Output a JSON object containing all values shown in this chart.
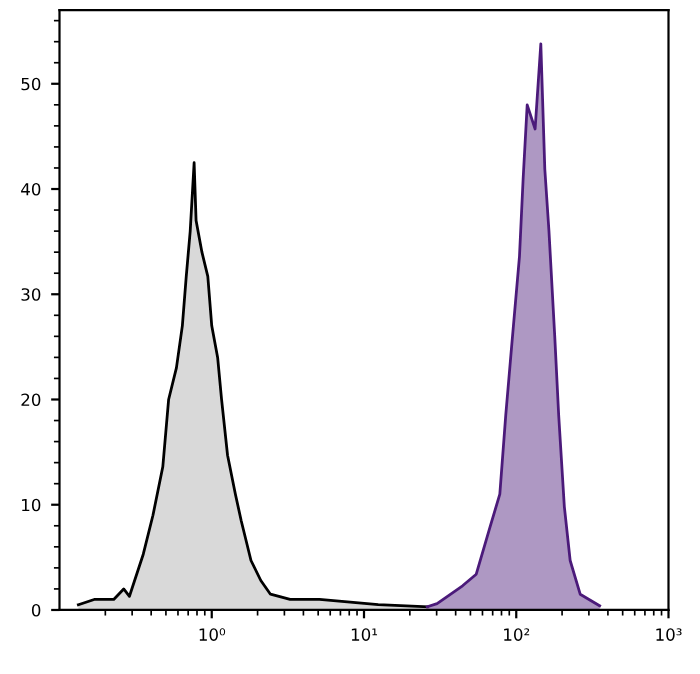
{
  "chart_data": {
    "type": "area",
    "log": "x",
    "xlim": [
      0.1,
      1000
    ],
    "ylim": [
      0,
      57
    ],
    "xticks": [
      {
        "value": 1,
        "label": "10⁰"
      },
      {
        "value": 10,
        "label": "10¹"
      },
      {
        "value": 100,
        "label": "10²"
      },
      {
        "value": 1000,
        "label": "10³"
      }
    ],
    "yticks": [
      0,
      10,
      20,
      30,
      40,
      50
    ],
    "series": [
      {
        "color": "#000000",
        "x": [
          0.133,
          0.169,
          0.227,
          0.264,
          0.288,
          0.355,
          0.411,
          0.477,
          0.521,
          0.586,
          0.641,
          0.68,
          0.722,
          0.766,
          0.789,
          0.862,
          0.942,
          1.0,
          1.093,
          1.16,
          1.27,
          1.43,
          1.56,
          1.81,
          2.1,
          2.43,
          3.27,
          5.1,
          12.4,
          26
        ],
        "values": [
          0.5,
          1,
          1,
          2,
          1.3,
          5.3,
          9,
          13.6,
          20,
          23,
          27,
          31.7,
          36,
          42.5,
          37,
          34,
          31.7,
          27,
          24,
          20,
          14.7,
          11,
          8.5,
          4.7,
          2.8,
          1.5,
          1,
          1,
          0.5,
          0.3
        ]
      },
      {
        "color": "#4b1a7a",
        "x": [
          26,
          30.2,
          44.4,
          54.6,
          67.3,
          78,
          85.3,
          93.2,
          105,
          111,
          118,
          133,
          145,
          154,
          164,
          179,
          190,
          207,
          226,
          263,
          353
        ],
        "values": [
          0.3,
          0.6,
          2.3,
          3.4,
          7.9,
          11,
          18.5,
          25,
          33.6,
          41,
          48,
          45.7,
          53.8,
          41.9,
          36,
          26,
          18.5,
          9.8,
          4.7,
          1.5,
          0.4
        ]
      }
    ]
  }
}
